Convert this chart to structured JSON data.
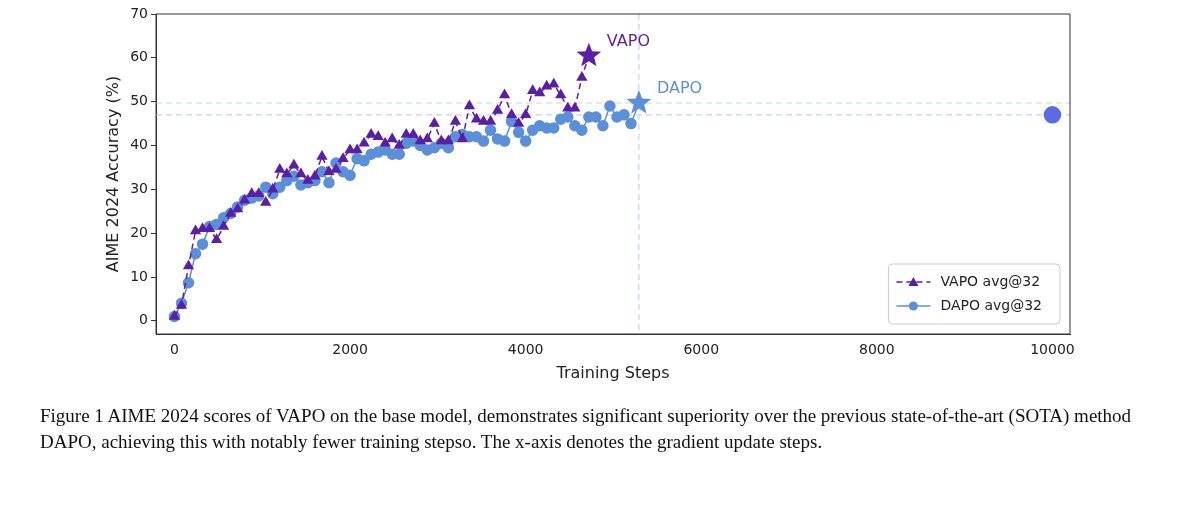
{
  "chart_data": {
    "type": "line",
    "xlabel": "Training Steps",
    "ylabel": "AIME 2024 Accuracy (%)",
    "xlim": [
      -210,
      10200
    ],
    "xticks": [
      0,
      2000,
      4000,
      6000,
      8000,
      10000
    ],
    "ylim": [
      -3,
      70
    ],
    "yticks": [
      0,
      10,
      20,
      30,
      40,
      50,
      60,
      70
    ],
    "grid": false,
    "legend": "bottom right",
    "series": [
      {
        "name": "VAPO avg@32",
        "color": "#5a1fa6",
        "marker": "triangle",
        "line_style": "dashed",
        "x": [
          0,
          80,
          160,
          240,
          320,
          400,
          480,
          560,
          640,
          720,
          800,
          880,
          960,
          1040,
          1120,
          1200,
          1280,
          1360,
          1440,
          1520,
          1600,
          1680,
          1760,
          1840,
          1920,
          2000,
          2080,
          2160,
          2240,
          2320,
          2400,
          2480,
          2560,
          2640,
          2720,
          2800,
          2880,
          2960,
          3040,
          3120,
          3200,
          3280,
          3360,
          3440,
          3520,
          3600,
          3680,
          3760,
          3840,
          3920,
          4000,
          4080,
          4160,
          4240,
          4320,
          4400,
          4480,
          4560,
          4640,
          4720
        ],
        "values": [
          1,
          3.5,
          12.5,
          20.5,
          21,
          21,
          18.5,
          21.5,
          24.5,
          25.5,
          27.5,
          29,
          29,
          27,
          30,
          34.5,
          33.5,
          35.5,
          33.5,
          32,
          33,
          37.5,
          34,
          34.5,
          37,
          39,
          39,
          40.5,
          42.5,
          42,
          40.5,
          41.5,
          40,
          42.5,
          42.5,
          41,
          41.5,
          45,
          41,
          41,
          45.5,
          41.5,
          49,
          46,
          45.5,
          45.5,
          48,
          51.5,
          47,
          45,
          47,
          52.5,
          52,
          53.5,
          54,
          51.5,
          48.5,
          48.5,
          55.5,
          60.5
        ]
      },
      {
        "name": "DAPO avg@32",
        "color": "#5b8fd9",
        "marker": "circle",
        "line_style": "solid",
        "x": [
          0,
          80,
          160,
          240,
          320,
          400,
          480,
          560,
          640,
          720,
          800,
          880,
          960,
          1040,
          1120,
          1200,
          1280,
          1360,
          1440,
          1520,
          1600,
          1680,
          1760,
          1840,
          1920,
          2000,
          2080,
          2160,
          2240,
          2320,
          2400,
          2480,
          2560,
          2640,
          2720,
          2800,
          2880,
          2960,
          3040,
          3120,
          3200,
          3280,
          3360,
          3440,
          3520,
          3600,
          3680,
          3760,
          3840,
          3920,
          4000,
          4080,
          4160,
          4240,
          4320,
          4400,
          4480,
          4560,
          4640,
          4720,
          4800,
          4880,
          4960,
          5040,
          5120,
          5200,
          5290
        ],
        "values": [
          1,
          4,
          8.7,
          15.3,
          17.5,
          21.5,
          22,
          23.5,
          24.5,
          26,
          27.5,
          28,
          28.5,
          30.5,
          29,
          30.5,
          32,
          33,
          31,
          31.5,
          32,
          34,
          31.5,
          36,
          34,
          33.2,
          37,
          36.5,
          38,
          38.5,
          39,
          38,
          38,
          40.5,
          41,
          40,
          39,
          39.5,
          40.5,
          39.5,
          42,
          42.5,
          42,
          42,
          41,
          43.5,
          41.5,
          41,
          45.5,
          43,
          41,
          43.5,
          44.5,
          44,
          44,
          46,
          46.5,
          44.5,
          43.5,
          46.5,
          46.5,
          44.5,
          49,
          46.5,
          47,
          45,
          49.7
        ]
      },
      {
        "type": "scatter",
        "color": "#5a1fa6",
        "marker": "star",
        "x": [
          4720
        ],
        "values": [
          60.5
        ]
      },
      {
        "type": "scatter",
        "color": "#5b8fd9",
        "marker": "star",
        "x": [
          5290
        ],
        "values": [
          49.7
        ]
      },
      {
        "type": "scatter",
        "color": "#5b6be6",
        "marker": "circle",
        "x": [
          10000
        ],
        "values": [
          47
        ]
      }
    ],
    "ref_lines": [
      {
        "axis": "x",
        "value": 5290,
        "color": "#c5d3f0",
        "line_style": "dashed"
      },
      {
        "axis": "y",
        "value": 49.7,
        "color": "#c5d3f0",
        "line_style": "dashed"
      },
      {
        "axis": "y",
        "value": 47,
        "color": "#c5d3f0",
        "line_style": "dashed"
      }
    ],
    "annotations": [
      {
        "text": "VAPO",
        "x": 4720,
        "y": 60.5
      },
      {
        "text": "DAPO",
        "x": 5290,
        "y": 49.7
      },
      "Figure 1 AIME 2024 scores of VAPO on the base model, demonstrates significant superiority over the previous state-of-the-art (SOTA) method DAPO, achieving this with notably fewer training stepso. The x-axis denotes the gradient update steps."
    ]
  }
}
